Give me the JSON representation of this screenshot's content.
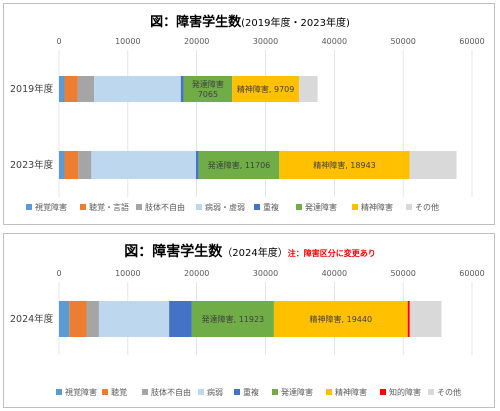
{
  "chart_data": [
    {
      "type": "bar",
      "orientation": "horizontal",
      "stacked": true,
      "title": "図：障害学生数",
      "subtitle": "(2019年度・2023年度)",
      "note": "",
      "xlim": [
        0,
        60000
      ],
      "ticks": [
        "0",
        "10000",
        "20000",
        "30000",
        "40000",
        "50000",
        "60000"
      ],
      "categories": [
        "2019年度",
        "2023年度"
      ],
      "grid": true,
      "legend_position": "bottom",
      "series": [
        {
          "name": "視覚障害",
          "color": "#5b9bd5",
          "values": [
            800,
            800
          ],
          "label": [
            "",
            ""
          ]
        },
        {
          "name": "聴覚・言語",
          "color": "#ed7d31",
          "values": [
            1900,
            2000
          ],
          "label": [
            "",
            ""
          ]
        },
        {
          "name": "肢体不自由",
          "color": "#a5a5a5",
          "values": [
            2400,
            1900
          ],
          "label": [
            "",
            ""
          ]
        },
        {
          "name": "病弱・虚弱",
          "color": "#bdd7ee",
          "values": [
            12600,
            15200
          ],
          "label": [
            "",
            ""
          ]
        },
        {
          "name": "重複",
          "color": "#4472c4",
          "values": [
            400,
            400
          ],
          "label": [
            "",
            ""
          ]
        },
        {
          "name": "発達障害",
          "color": "#70ad47",
          "values": [
            7065,
            11706
          ],
          "label": [
            "発達障害\n7065",
            "発達障害, 11706"
          ]
        },
        {
          "name": "精神障害",
          "color": "#ffc000",
          "values": [
            9709,
            18943
          ],
          "label": [
            "精神障害, 9709",
            "精神障害, 18943"
          ]
        },
        {
          "name": "その他",
          "color": "#d9d9d9",
          "values": [
            2700,
            6800
          ],
          "label": [
            "",
            ""
          ]
        }
      ]
    },
    {
      "type": "bar",
      "orientation": "horizontal",
      "stacked": true,
      "title": "図：障害学生数",
      "subtitle": "（2024年度）",
      "note": "注：障害区分に変更あり",
      "xlim": [
        0,
        60000
      ],
      "ticks": [
        "0",
        "10000",
        "20000",
        "30000",
        "40000",
        "50000",
        "60000"
      ],
      "categories": [
        "2024年度"
      ],
      "grid": true,
      "legend_position": "bottom",
      "series": [
        {
          "name": "視覚障害",
          "color": "#5b9bd5",
          "values": [
            1500
          ],
          "label": [
            ""
          ]
        },
        {
          "name": "聴覚",
          "color": "#ed7d31",
          "values": [
            2500
          ],
          "label": [
            ""
          ]
        },
        {
          "name": "肢体不自由",
          "color": "#a5a5a5",
          "values": [
            1800
          ],
          "label": [
            ""
          ]
        },
        {
          "name": "病弱",
          "color": "#bdd7ee",
          "values": [
            10200
          ],
          "label": [
            ""
          ]
        },
        {
          "name": "重複",
          "color": "#4472c4",
          "values": [
            3300
          ],
          "label": [
            ""
          ]
        },
        {
          "name": "発達障害",
          "color": "#70ad47",
          "values": [
            11923
          ],
          "label": [
            "発達障害, 11923"
          ]
        },
        {
          "name": "精神障害",
          "color": "#ffc000",
          "values": [
            19440
          ],
          "label": [
            "精神障害, 19440"
          ]
        },
        {
          "name": "知的障害",
          "color": "#ff0000",
          "values": [
            300
          ],
          "label": [
            ""
          ]
        },
        {
          "name": "その他",
          "color": "#d9d9d9",
          "values": [
            4600
          ],
          "label": [
            ""
          ]
        }
      ]
    }
  ]
}
